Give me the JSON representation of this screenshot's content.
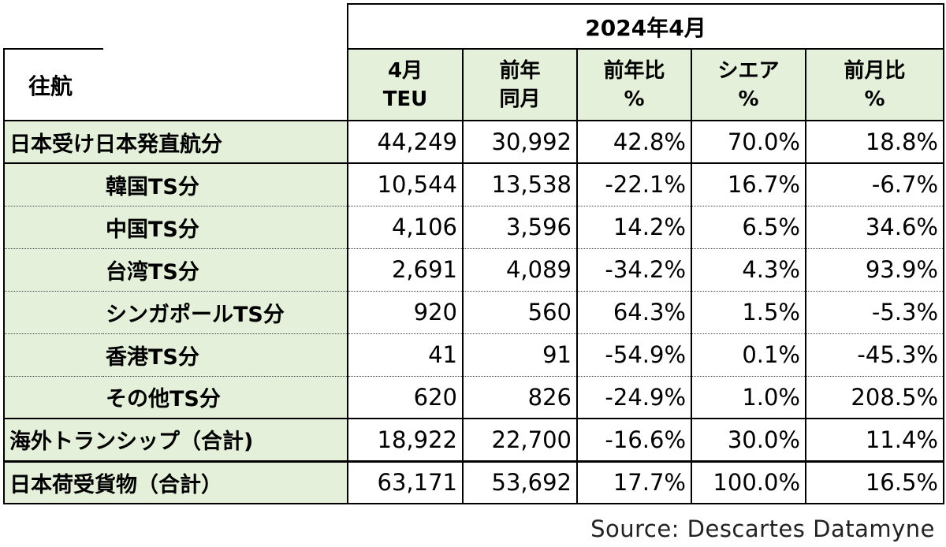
{
  "chart_data": {
    "type": "table",
    "period": "2024年4月",
    "axis_label": "往航",
    "columns": [
      {
        "line1": "4月",
        "line2": "TEU"
      },
      {
        "line1": "前年",
        "line2": "同月"
      },
      {
        "line1": "前年比",
        "line2": "%"
      },
      {
        "line1": "シエア",
        "line2": "%"
      },
      {
        "line1": "前月比",
        "line2": "%"
      }
    ],
    "rows": [
      {
        "label": "日本受け日本発直航分",
        "values": [
          "44,249",
          "30,992",
          "42.8%",
          "70.0%",
          "18.8%"
        ]
      },
      {
        "label": "韓国TS分",
        "values": [
          "10,544",
          "13,538",
          "-22.1%",
          "16.7%",
          "-6.7%"
        ]
      },
      {
        "label": "中国TS分",
        "values": [
          "4,106",
          "3,596",
          "14.2%",
          "6.5%",
          "34.6%"
        ]
      },
      {
        "label": "台湾TS分",
        "values": [
          "2,691",
          "4,089",
          "-34.2%",
          "4.3%",
          "93.9%"
        ]
      },
      {
        "label": "シンガポールTS分",
        "values": [
          "920",
          "560",
          "64.3%",
          "1.5%",
          "-5.3%"
        ]
      },
      {
        "label": "香港TS分",
        "values": [
          "41",
          "91",
          "-54.9%",
          "0.1%",
          "-45.3%"
        ]
      },
      {
        "label": "その他TS分",
        "values": [
          "620",
          "826",
          "-24.9%",
          "1.0%",
          "208.5%"
        ]
      },
      {
        "label": "海外トランシップ（合計)",
        "values": [
          "18,922",
          "22,700",
          "-16.6%",
          "30.0%",
          "11.4%"
        ]
      },
      {
        "label": "日本荷受貨物（合計）",
        "values": [
          "63,171",
          "53,692",
          "17.7%",
          "100.0%",
          "16.5%"
        ]
      }
    ],
    "source": "Source:  Descartes Datamyne"
  }
}
